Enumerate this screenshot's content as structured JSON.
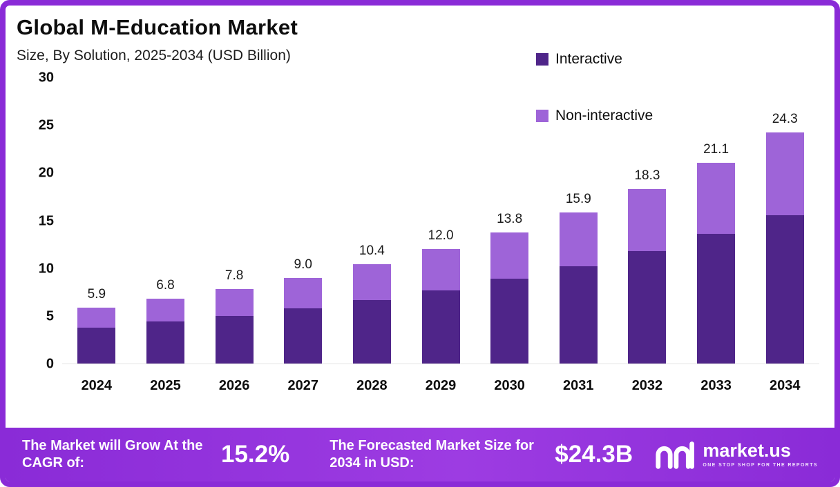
{
  "header": {
    "title": "Global M-Education Market",
    "subtitle": "Size, By Solution, 2025-2034 (USD Billion)"
  },
  "legend": [
    {
      "label": "Interactive",
      "color": "#4f2589"
    },
    {
      "label": "Non-interactive",
      "color": "#9e64d8"
    }
  ],
  "chart_data": {
    "type": "bar",
    "stacked": true,
    "title": "Global M-Education Market",
    "subtitle": "Size, By Solution, 2025-2034 (USD Billion)",
    "unit": "USD Billion",
    "categories": [
      "2024",
      "2025",
      "2026",
      "2027",
      "2028",
      "2029",
      "2030",
      "2031",
      "2032",
      "2033",
      "2034"
    ],
    "series": [
      {
        "name": "Interactive",
        "color": "#4f2589",
        "values": [
          3.8,
          4.4,
          5.0,
          5.8,
          6.7,
          7.7,
          8.9,
          10.2,
          11.8,
          13.6,
          15.6
        ]
      },
      {
        "name": "Non-interactive",
        "color": "#9e64d8",
        "values": [
          2.1,
          2.4,
          2.8,
          3.2,
          3.7,
          4.3,
          4.9,
          5.7,
          6.5,
          7.5,
          8.7
        ]
      }
    ],
    "totals": [
      5.9,
      6.8,
      7.8,
      9.0,
      10.4,
      12.0,
      13.8,
      15.9,
      18.3,
      21.1,
      24.3
    ],
    "total_labels": [
      "5.9",
      "6.8",
      "7.8",
      "9.0",
      "10.4",
      "12.0",
      "13.8",
      "15.9",
      "18.3",
      "21.1",
      "24.3"
    ],
    "ylim": [
      0,
      30
    ],
    "yticks": [
      0,
      5,
      10,
      15,
      20,
      25,
      30
    ],
    "xlabel": "",
    "ylabel": "",
    "grid": false,
    "legend_position": "top-right"
  },
  "footer": {
    "cagr_label": "The Market will Grow At the CAGR of:",
    "cagr_value": "15.2%",
    "forecast_label": "The Forecasted Market Size for 2034 in USD:",
    "forecast_value": "$24.3B",
    "logo_text": "market.us",
    "logo_tagline": "ONE STOP SHOP FOR THE REPORTS"
  }
}
